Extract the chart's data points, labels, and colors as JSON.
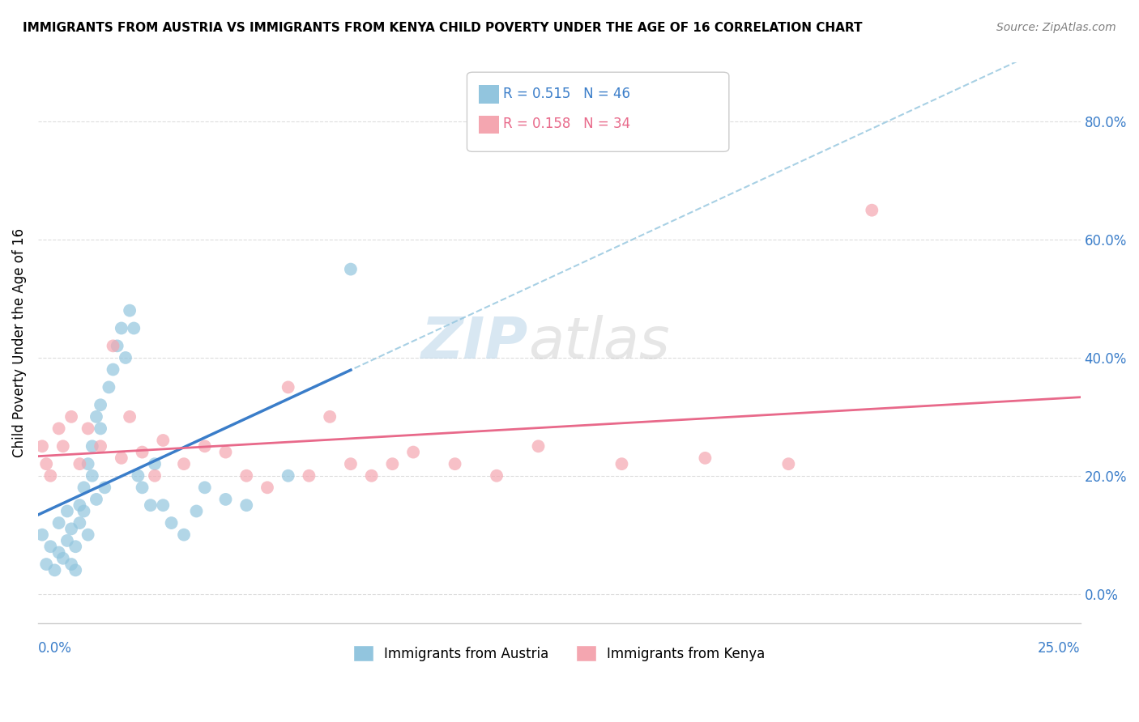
{
  "title": "IMMIGRANTS FROM AUSTRIA VS IMMIGRANTS FROM KENYA CHILD POVERTY UNDER THE AGE OF 16 CORRELATION CHART",
  "source": "Source: ZipAtlas.com",
  "ylabel": "Child Poverty Under the Age of 16",
  "yaxis_values": [
    0.0,
    0.2,
    0.4,
    0.6,
    0.8
  ],
  "xlim": [
    0.0,
    0.25
  ],
  "ylim": [
    -0.05,
    0.9
  ],
  "austria_R": 0.515,
  "austria_N": 46,
  "kenya_R": 0.158,
  "kenya_N": 34,
  "austria_color": "#92C5DE",
  "kenya_color": "#F4A6B0",
  "austria_line_color": "#3A7DC9",
  "kenya_line_color": "#E8698A",
  "austria_dashed_color": "#92C5DE",
  "watermark_zip": "ZIP",
  "watermark_atlas": "atlas",
  "austria_scatter_x": [
    0.001,
    0.002,
    0.003,
    0.004,
    0.005,
    0.005,
    0.006,
    0.007,
    0.007,
    0.008,
    0.008,
    0.009,
    0.009,
    0.01,
    0.01,
    0.011,
    0.011,
    0.012,
    0.012,
    0.013,
    0.013,
    0.014,
    0.014,
    0.015,
    0.015,
    0.016,
    0.017,
    0.018,
    0.019,
    0.02,
    0.021,
    0.022,
    0.023,
    0.024,
    0.025,
    0.027,
    0.028,
    0.03,
    0.032,
    0.035,
    0.038,
    0.04,
    0.045,
    0.05,
    0.06,
    0.075
  ],
  "austria_scatter_y": [
    0.1,
    0.05,
    0.08,
    0.04,
    0.07,
    0.12,
    0.06,
    0.09,
    0.14,
    0.05,
    0.11,
    0.04,
    0.08,
    0.12,
    0.15,
    0.14,
    0.18,
    0.1,
    0.22,
    0.2,
    0.25,
    0.16,
    0.3,
    0.28,
    0.32,
    0.18,
    0.35,
    0.38,
    0.42,
    0.45,
    0.4,
    0.48,
    0.45,
    0.2,
    0.18,
    0.15,
    0.22,
    0.15,
    0.12,
    0.1,
    0.14,
    0.18,
    0.16,
    0.15,
    0.2,
    0.55
  ],
  "kenya_scatter_x": [
    0.001,
    0.002,
    0.003,
    0.005,
    0.006,
    0.008,
    0.01,
    0.012,
    0.015,
    0.018,
    0.02,
    0.022,
    0.025,
    0.028,
    0.03,
    0.035,
    0.04,
    0.045,
    0.05,
    0.055,
    0.06,
    0.065,
    0.07,
    0.075,
    0.08,
    0.085,
    0.09,
    0.1,
    0.11,
    0.12,
    0.14,
    0.16,
    0.18,
    0.2
  ],
  "kenya_scatter_y": [
    0.25,
    0.22,
    0.2,
    0.28,
    0.25,
    0.3,
    0.22,
    0.28,
    0.25,
    0.42,
    0.23,
    0.3,
    0.24,
    0.2,
    0.26,
    0.22,
    0.25,
    0.24,
    0.2,
    0.18,
    0.35,
    0.2,
    0.3,
    0.22,
    0.2,
    0.22,
    0.24,
    0.22,
    0.2,
    0.25,
    0.22,
    0.23,
    0.22,
    0.65
  ]
}
